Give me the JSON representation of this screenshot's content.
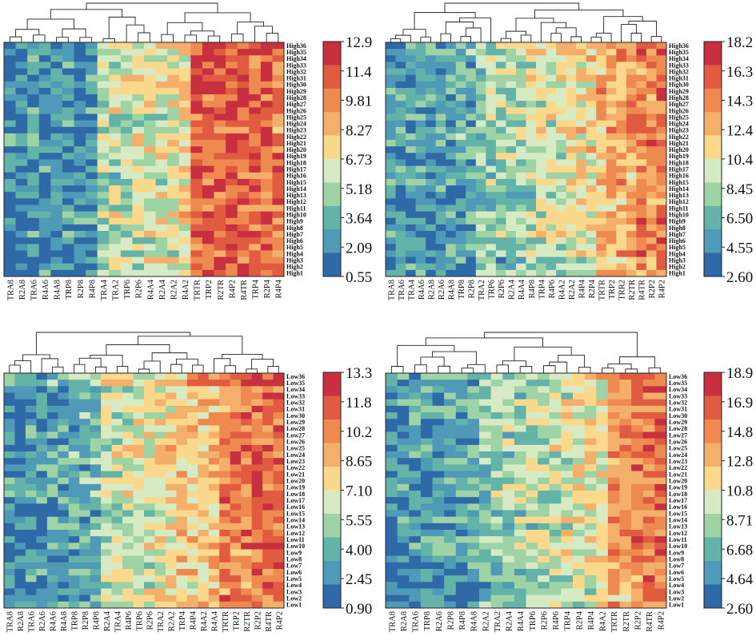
{
  "palette": [
    "#2f6aa8",
    "#4e9ab7",
    "#63b3a8",
    "#9ed4a5",
    "#d6ebc3",
    "#fad98c",
    "#f4b06a",
    "#ee8a4f",
    "#e05b3f",
    "#c9303f"
  ],
  "chart_data": [
    {
      "type": "heatmap",
      "rows": [
        "High36",
        "High35",
        "High34",
        "High33",
        "High32",
        "High31",
        "High30",
        "High29",
        "High28",
        "High27",
        "High26",
        "High25",
        "High24",
        "High23",
        "High22",
        "High21",
        "High20",
        "High19",
        "High18",
        "High17",
        "High16",
        "High15",
        "High14",
        "High13",
        "High12",
        "High11",
        "High10",
        "High9",
        "High8",
        "High7",
        "High6",
        "High5",
        "High4",
        "High3",
        "High2",
        "High1"
      ],
      "columns": [
        "TRA8",
        "R2A8",
        "TRA6",
        "R4A6",
        "R4A8",
        "TRP8",
        "R2P8",
        "R4P8",
        "TRA4",
        "TRA2",
        "TRP6",
        "R2P6",
        "R4A4",
        "R2A4",
        "R2A2",
        "R4A2",
        "TRTR",
        "TRP2",
        "R2TR",
        "R4P2",
        "R4TR",
        "TRP4",
        "R2P4",
        "R4P4"
      ],
      "colorbar": [
        "12.9",
        "11.4",
        "9.81",
        "8.27",
        "6.73",
        "5.18",
        "3.64",
        "2.09",
        "0.55"
      ],
      "vmin": 0.55,
      "vmax": 12.9,
      "column_profile": [
        0.12,
        0.1,
        0.14,
        0.13,
        0.1,
        0.16,
        0.12,
        0.13,
        0.38,
        0.4,
        0.42,
        0.45,
        0.44,
        0.48,
        0.5,
        0.52,
        0.85,
        0.84,
        0.86,
        0.88,
        0.82,
        0.8,
        0.83,
        0.78
      ]
    },
    {
      "type": "heatmap",
      "rows": [
        "High36",
        "High35",
        "High34",
        "High33",
        "High32",
        "High31",
        "High30",
        "High29",
        "High28",
        "High27",
        "High26",
        "High25",
        "High24",
        "High23",
        "High22",
        "High21",
        "High20",
        "High19",
        "High18",
        "High17",
        "High16",
        "High15",
        "High14",
        "High13",
        "High12",
        "High11",
        "High10",
        "High9",
        "High8",
        "High7",
        "High6",
        "High5",
        "High4",
        "High3",
        "High2",
        "High1"
      ],
      "columns": [
        "TRA8",
        "TRA6",
        "TRA4",
        "R4A6",
        "R2A8",
        "R2A6",
        "R4A8",
        "TRP8",
        "R2P8",
        "TRA2",
        "TRP6",
        "R2P6",
        "R2A4",
        "R4A4",
        "R4P8",
        "TRP4",
        "R4P6",
        "R4A2",
        "R2A2",
        "R4P4",
        "R2P4",
        "TRTR",
        "TRP2",
        "TRR2",
        "R2TR",
        "R4TR",
        "R2P2",
        "R4P2"
      ],
      "colorbar": [
        "18.2",
        "16.3",
        "14.3",
        "12.4",
        "10.4",
        "8.45",
        "6.50",
        "4.55",
        "2.60"
      ],
      "vmin": 2.6,
      "vmax": 18.2,
      "column_profile": [
        0.15,
        0.14,
        0.16,
        0.18,
        0.15,
        0.17,
        0.2,
        0.22,
        0.24,
        0.3,
        0.32,
        0.34,
        0.36,
        0.38,
        0.4,
        0.42,
        0.44,
        0.46,
        0.48,
        0.5,
        0.52,
        0.6,
        0.64,
        0.66,
        0.68,
        0.72,
        0.74,
        0.78
      ]
    },
    {
      "type": "heatmap",
      "rows": [
        "Low36",
        "Low35",
        "Low34",
        "Low33",
        "Low32",
        "Low31",
        "Low30",
        "Low29",
        "Low28",
        "Low27",
        "Low26",
        "Low25",
        "Low24",
        "Low23",
        "Low22",
        "Low21",
        "Low20",
        "Low19",
        "Low18",
        "Low17",
        "Low16",
        "Low15",
        "Low14",
        "Low13",
        "Low12",
        "Low11",
        "Low10",
        "Low9",
        "Low8",
        "Low7",
        "Low6",
        "Low5",
        "Low4",
        "Low3",
        "Low2",
        "Low1"
      ],
      "columns": [
        "TRA8",
        "R2A8",
        "TRA6",
        "R2A6",
        "R4A6",
        "R4A8",
        "TRP8",
        "R2P8",
        "R4P8",
        "R2A4",
        "TRA4",
        "R4P6",
        "TRP6",
        "R2P6",
        "TRA2",
        "R2A2",
        "TRP4",
        "R4P4",
        "R4A2",
        "R4A4",
        "TRTR",
        "TRP2",
        "R2TR",
        "R2P2",
        "R4TR",
        "R4P2"
      ],
      "colorbar": [
        "13.3",
        "11.8",
        "10.2",
        "8.65",
        "7.10",
        "5.55",
        "4.00",
        "2.45",
        "0.90"
      ],
      "vmin": 0.9,
      "vmax": 13.3,
      "column_profile": [
        0.14,
        0.12,
        0.16,
        0.15,
        0.18,
        0.17,
        0.22,
        0.24,
        0.26,
        0.4,
        0.42,
        0.44,
        0.46,
        0.48,
        0.5,
        0.52,
        0.56,
        0.58,
        0.6,
        0.62,
        0.74,
        0.76,
        0.78,
        0.8,
        0.82,
        0.8
      ]
    },
    {
      "type": "heatmap",
      "rows": [
        "Low36",
        "Low35",
        "Low34",
        "Low33",
        "Low32",
        "Low31",
        "Low30",
        "Low29",
        "Low28",
        "Low27",
        "Low26",
        "Low25",
        "Low24",
        "Low23",
        "Low22",
        "Low21",
        "Low20",
        "Low19",
        "Low18",
        "Low17",
        "Low16",
        "Low15",
        "Low14",
        "Low13",
        "Low12",
        "Low11",
        "Low10",
        "Low9",
        "Low8",
        "Low7",
        "Low6",
        "Low5",
        "Low4",
        "Low3",
        "Low2",
        "Low1"
      ],
      "columns": [
        "TRA8",
        "R2A8",
        "TRA6",
        "TRP8",
        "R2A6",
        "R2P8",
        "R4P8",
        "R4A8",
        "R2A2",
        "TRA2",
        "R2A4",
        "R4A4",
        "TRP6",
        "R2P6",
        "R4P6",
        "TRP4",
        "R2P4",
        "R4P4",
        "R4A2",
        "TRTR",
        "R2TR",
        "R2P2",
        "R4TR",
        "R4P2"
      ],
      "colorbar": [
        "18.9",
        "16.9",
        "14.8",
        "12.8",
        "10.8",
        "8.71",
        "6.68",
        "4.64",
        "2.60"
      ],
      "vmin": 2.6,
      "vmax": 18.9,
      "column_profile": [
        0.12,
        0.13,
        0.14,
        0.16,
        0.15,
        0.18,
        0.2,
        0.22,
        0.3,
        0.32,
        0.34,
        0.36,
        0.38,
        0.4,
        0.42,
        0.44,
        0.46,
        0.48,
        0.5,
        0.68,
        0.7,
        0.74,
        0.78,
        0.8
      ]
    }
  ]
}
